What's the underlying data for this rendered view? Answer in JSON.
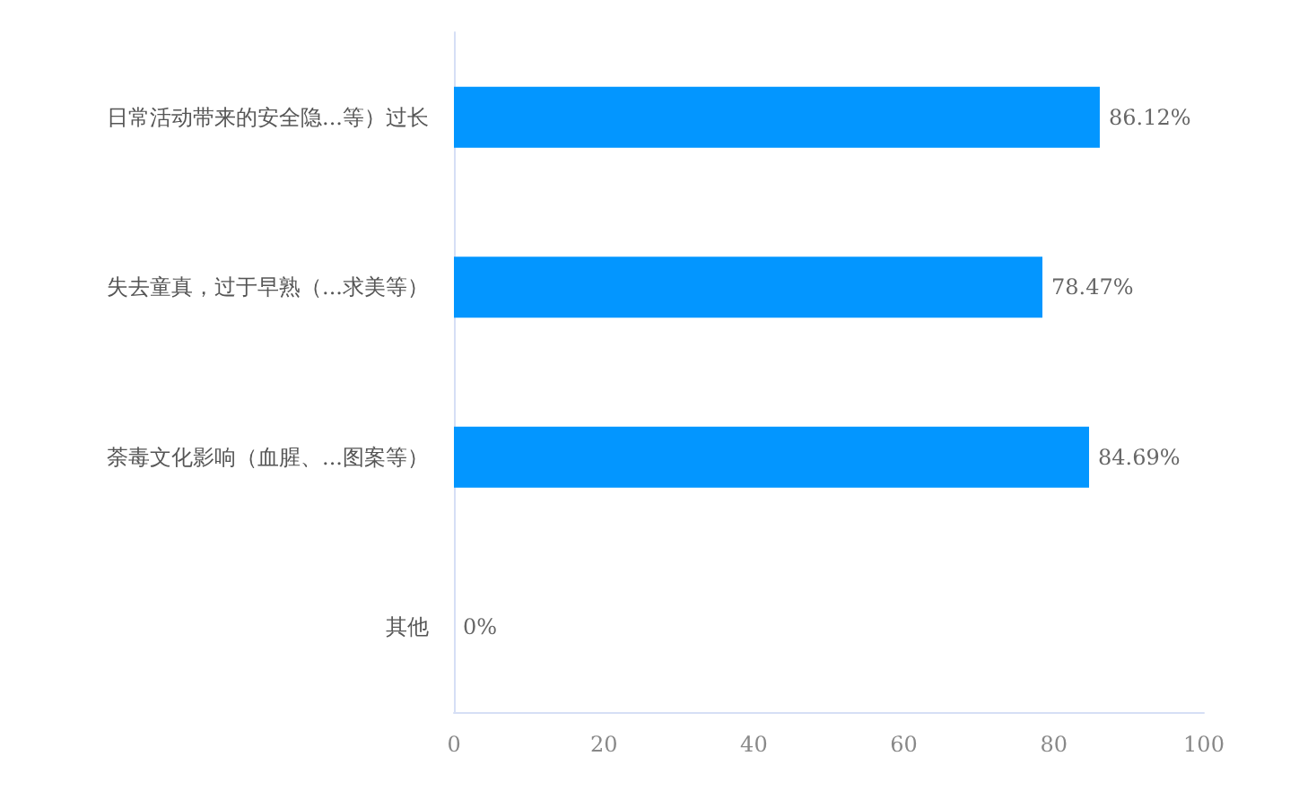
{
  "chart_data": {
    "type": "bar",
    "orientation": "horizontal",
    "categories": [
      "日常活动带来的安全隐...等）过长",
      "失去童真，过于早熟（...求美等）",
      "荼毒文化影响（血腥、...图案等）",
      "其他"
    ],
    "values": [
      86.12,
      78.47,
      84.69,
      0
    ],
    "value_labels": [
      "86.12%",
      "78.47%",
      "84.69%",
      "0%"
    ],
    "color": "#0396ff",
    "xlim": [
      0,
      100
    ],
    "xticks": [
      0,
      20,
      40,
      60,
      80,
      100
    ],
    "grid": false
  }
}
